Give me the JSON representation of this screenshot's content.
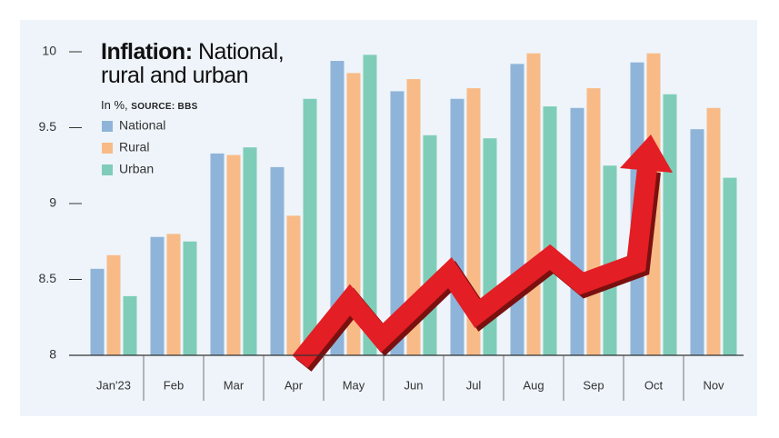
{
  "chart_data": {
    "type": "bar",
    "title_lead": "Inflation:",
    "title": "National, rural and urban",
    "unit": "In %,",
    "source": "SOURCE: BBS",
    "categories": [
      "Jan'23",
      "Feb",
      "Mar",
      "Apr",
      "May",
      "Jun",
      "Jul",
      "Aug",
      "Sep",
      "Oct",
      "Nov"
    ],
    "series": [
      {
        "name": "National",
        "color": "#8fb4d9",
        "values": [
          8.57,
          8.78,
          9.33,
          9.24,
          9.94,
          9.74,
          9.69,
          9.92,
          9.63,
          9.93,
          9.49
        ]
      },
      {
        "name": "Rural",
        "color": "#f8bb88",
        "values": [
          8.66,
          8.8,
          9.32,
          8.92,
          9.86,
          9.82,
          9.76,
          9.99,
          9.76,
          9.99,
          9.63
        ]
      },
      {
        "name": "Urban",
        "color": "#7fcdb8",
        "values": [
          8.39,
          8.75,
          9.37,
          9.69,
          9.98,
          9.45,
          9.43,
          9.64,
          9.25,
          9.72,
          9.17
        ]
      }
    ],
    "ylim": [
      8,
      10
    ],
    "yticks": [
      8,
      8.5,
      9,
      9.5,
      10
    ]
  }
}
